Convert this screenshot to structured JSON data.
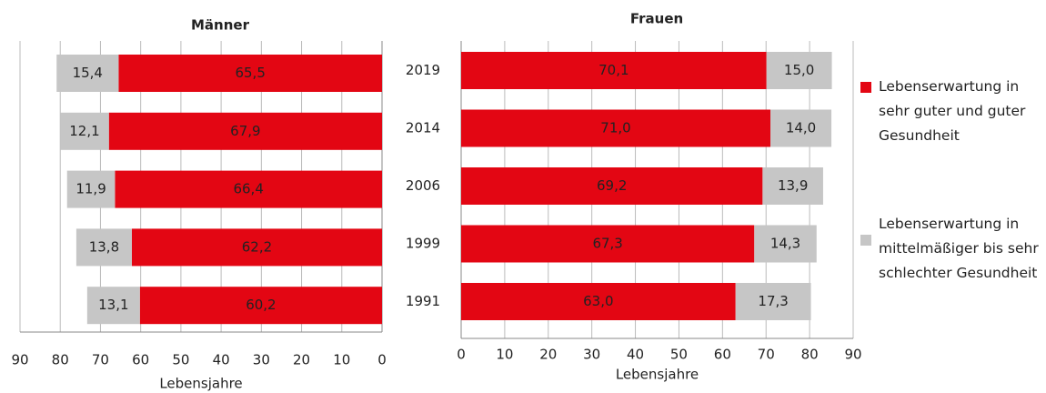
{
  "chart_data": [
    {
      "type": "bar",
      "title": "Männer",
      "x_label": "Lebensjahre",
      "orientation": "horizontal",
      "stacked": true,
      "x_reversed": true,
      "categories": [
        "2019",
        "2014",
        "2006",
        "1999",
        "1991"
      ],
      "series": [
        {
          "color": "#e30613",
          "values": [
            65.5,
            67.9,
            66.4,
            62.2,
            60.2
          ],
          "value_labels": [
            "65,5",
            "67,9",
            "66,4",
            "62,2",
            "60,2"
          ]
        },
        {
          "color": "#c6c6c6",
          "values": [
            15.4,
            12.1,
            11.9,
            13.8,
            13.1
          ],
          "value_labels": [
            "15,4",
            "12,1",
            "11,9",
            "13,8",
            "13,1"
          ]
        }
      ],
      "xlim": [
        0,
        90
      ],
      "xticks": [
        0,
        10,
        20,
        30,
        40,
        50,
        60,
        70,
        80,
        90
      ],
      "grid": true
    },
    {
      "type": "bar",
      "title": "Frauen",
      "x_label": "Lebensjahre",
      "orientation": "horizontal",
      "stacked": true,
      "x_reversed": false,
      "categories": [
        "2019",
        "2014",
        "2006",
        "1999",
        "1991"
      ],
      "series": [
        {
          "name": "Lebenserwartung in sehr guter und guter Gesundheit",
          "color": "#e30613",
          "values": [
            70.1,
            71.0,
            69.2,
            67.3,
            63.0
          ],
          "value_labels": [
            "70,1",
            "71,0",
            "69,2",
            "67,3",
            "63,0"
          ]
        },
        {
          "name": "Lebenserwartung in mittelmäßiger bis sehr schlechter Gesundheit",
          "color": "#c6c6c6",
          "values": [
            15.0,
            14.0,
            13.9,
            14.3,
            17.3
          ],
          "value_labels": [
            "15,0",
            "14,0",
            "13,9",
            "14,3",
            "17,3"
          ]
        }
      ],
      "xlim": [
        0,
        90
      ],
      "xticks": [
        0,
        10,
        20,
        30,
        40,
        50,
        60,
        70,
        80,
        90
      ],
      "grid": true
    }
  ]
}
